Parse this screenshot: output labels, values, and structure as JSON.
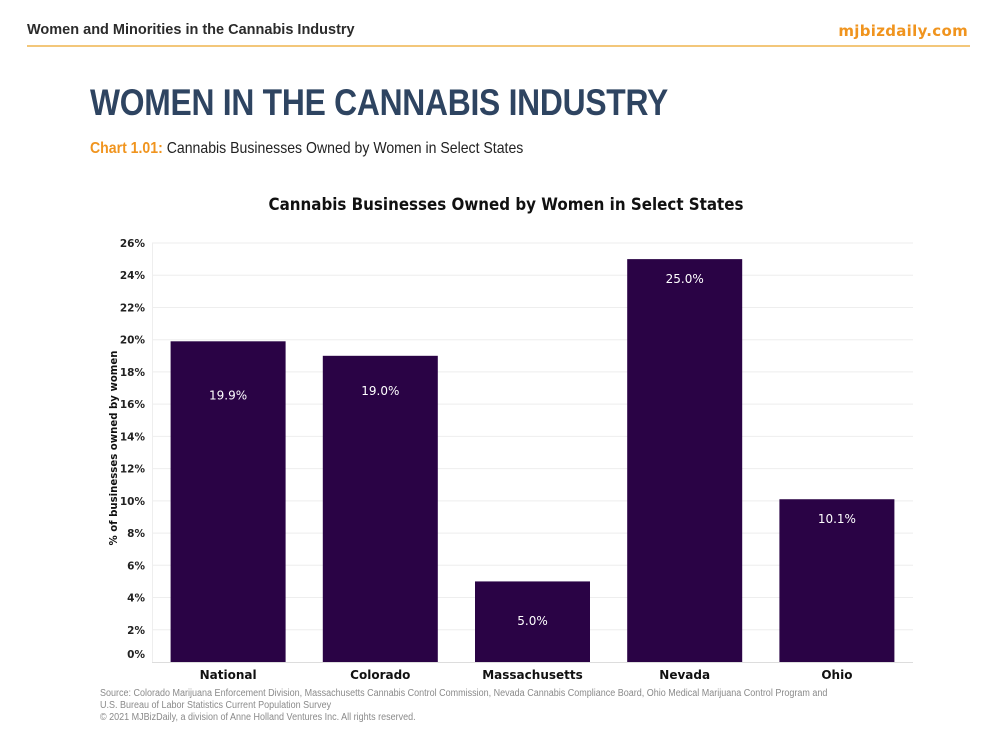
{
  "header": {
    "left_title": "Women and Minorities in the Cannabis Industry",
    "site": "mjbizdaily.com"
  },
  "page": {
    "title": "WOMEN IN THE CANNABIS INDUSTRY",
    "chart_number": "Chart 1.01:",
    "chart_caption": "Cannabis Businesses Owned by Women in Select States"
  },
  "colors": {
    "bar": "#2a0345",
    "accent": "#f0941e",
    "title": "#2e4461",
    "gridline": "#eeeeee"
  },
  "chart_data": {
    "type": "bar",
    "title": "Cannabis Businesses Owned by Women in Select States",
    "xlabel": "",
    "ylabel": "% of businesses owned by women",
    "categories": [
      "National",
      "Colorado",
      "Massachusetts",
      "Nevada",
      "Ohio"
    ],
    "values": [
      19.9,
      19.0,
      5.0,
      25.0,
      10.1
    ],
    "data_labels": [
      "19.9%",
      "19.0%",
      "5.0%",
      "25.0%",
      "10.1%"
    ],
    "ylim": [
      0,
      26
    ],
    "yticks": [
      0,
      2,
      4,
      6,
      8,
      10,
      12,
      14,
      16,
      18,
      20,
      22,
      24,
      26
    ],
    "ytick_labels": [
      "0%",
      "2%",
      "4%",
      "6%",
      "8%",
      "10%",
      "12%",
      "14%",
      "16%",
      "18%",
      "20%",
      "22%",
      "24%",
      "26%"
    ],
    "grid": true,
    "legend": "none"
  },
  "footer": {
    "source": "Source: Colorado Marijuana Enforcement Division, Massachusetts Cannabis Control Commission, Nevada Cannabis Compliance Board, Ohio Medical Marijuana Control Program and U.S. Bureau of Labor Statistics Current Population Survey",
    "copyright": "© 2021 MJBizDaily, a division of Anne Holland Ventures Inc. All rights reserved."
  }
}
